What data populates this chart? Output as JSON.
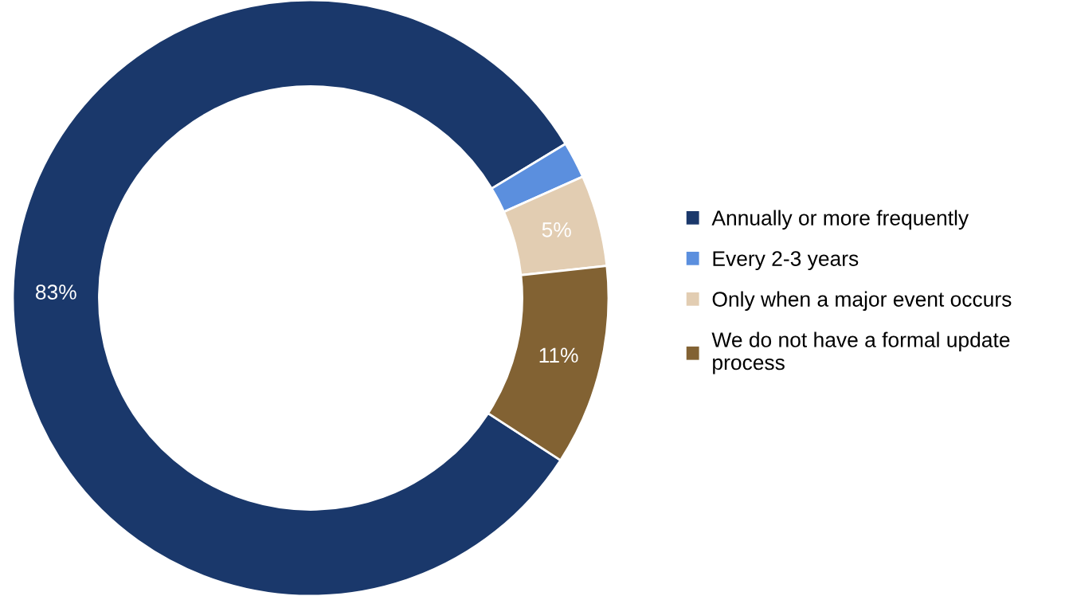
{
  "chart_data": {
    "type": "donut",
    "categories": [
      "Annually or more frequently",
      "Every 2-3 years",
      "Only when a major event occurs",
      "We do not have a formal update process"
    ],
    "values": [
      83,
      2,
      5,
      11
    ],
    "colors": [
      "#1a386b",
      "#5b8fde",
      "#e2cdb2",
      "#826233"
    ],
    "value_labels": [
      "83%",
      null,
      "5%",
      "11%"
    ],
    "legend": "right"
  }
}
